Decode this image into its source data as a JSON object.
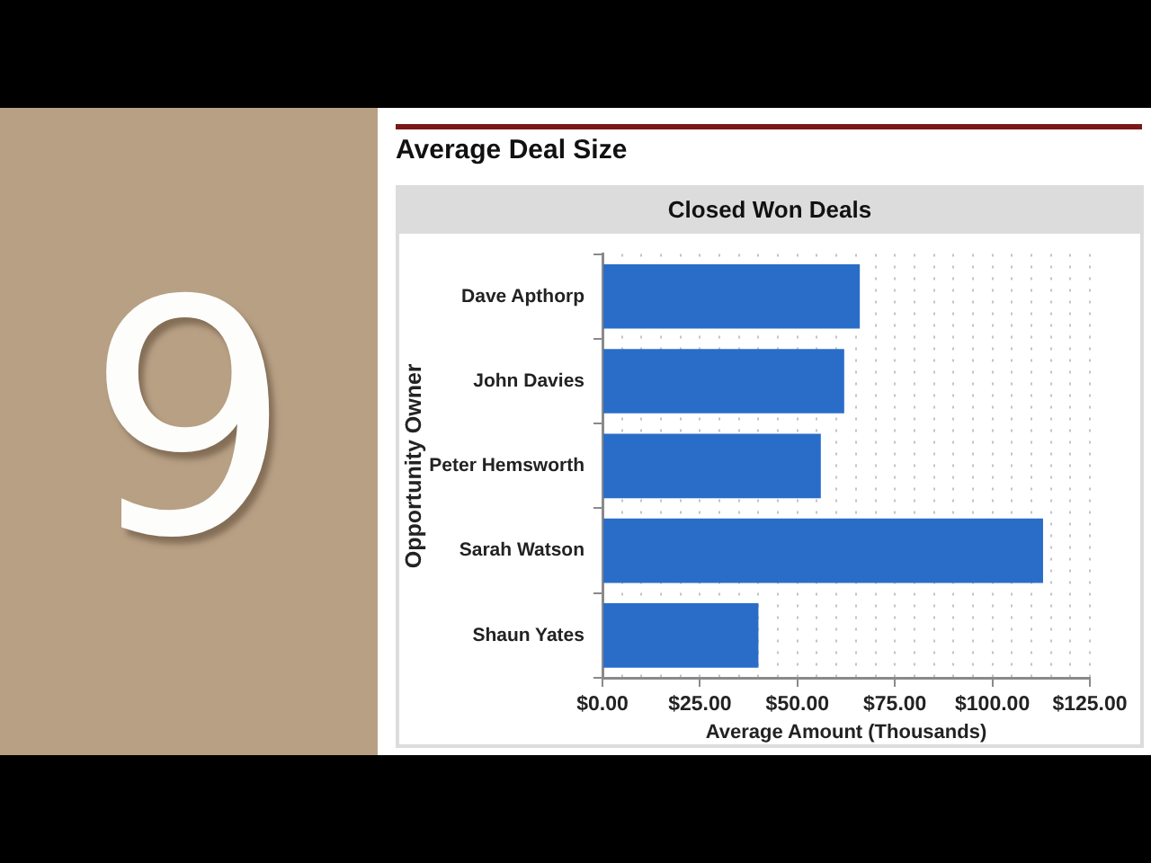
{
  "chart_data": {
    "type": "bar",
    "orientation": "horizontal",
    "title": "Average Deal Size",
    "subtitle": "Closed Won Deals",
    "xlabel": "Average Amount (Thousands)",
    "ylabel": "Opportunity Owner",
    "categories": [
      "Dave Apthorp",
      "John Davies",
      "Peter Hemsworth",
      "Sarah Watson",
      "Shaun Yates"
    ],
    "values": [
      66,
      62,
      56,
      113,
      40
    ],
    "color": "#2a6dc9",
    "xlim": [
      0,
      125
    ],
    "xticks": [
      {
        "value": 0,
        "label": "$0.00"
      },
      {
        "value": 5,
        "label": null
      },
      {
        "value": 10,
        "label": null
      },
      {
        "value": 15,
        "label": null
      },
      {
        "value": 20,
        "label": null
      },
      {
        "value": 25,
        "label": "$25.00"
      },
      {
        "value": 30,
        "label": null
      },
      {
        "value": 35,
        "label": null
      },
      {
        "value": 40,
        "label": null
      },
      {
        "value": 45,
        "label": null
      },
      {
        "value": 50,
        "label": "$50.00"
      },
      {
        "value": 55,
        "label": null
      },
      {
        "value": 60,
        "label": null
      },
      {
        "value": 65,
        "label": null
      },
      {
        "value": 70,
        "label": null
      },
      {
        "value": 75,
        "label": "$75.00"
      },
      {
        "value": 80,
        "label": null
      },
      {
        "value": 85,
        "label": null
      },
      {
        "value": 90,
        "label": null
      },
      {
        "value": 95,
        "label": null
      },
      {
        "value": 100,
        "label": "$100.00"
      },
      {
        "value": 105,
        "label": null
      },
      {
        "value": 110,
        "label": null
      },
      {
        "value": 115,
        "label": null
      },
      {
        "value": 120,
        "label": null
      },
      {
        "value": 125,
        "label": "$125.00"
      }
    ],
    "grid": "x",
    "annotations": [
      "9"
    ]
  }
}
